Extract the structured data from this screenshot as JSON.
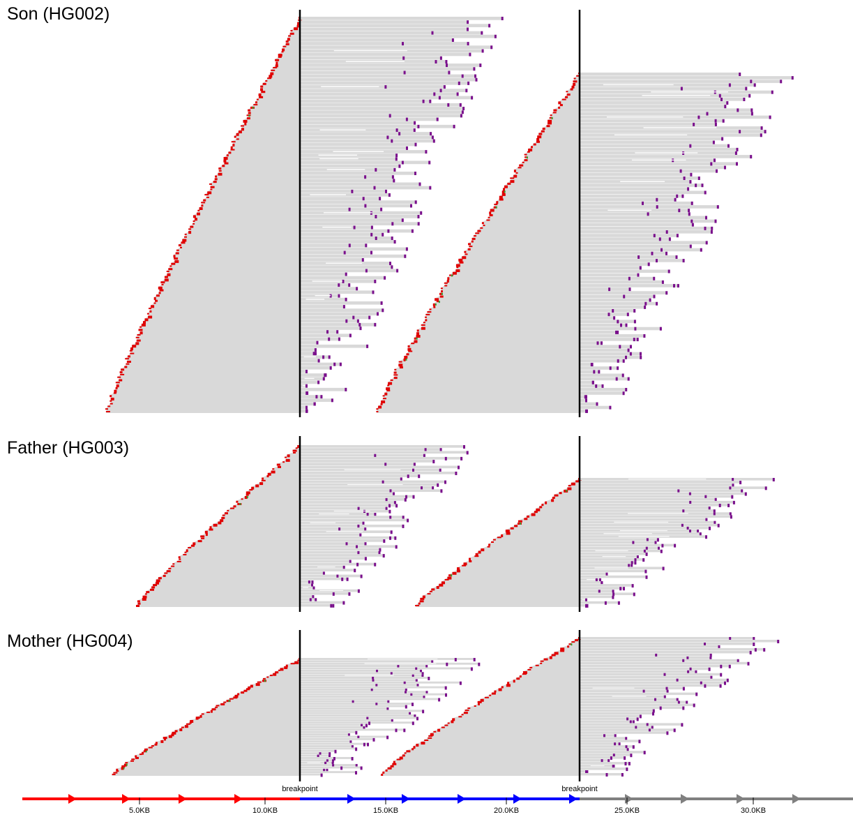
{
  "colors": {
    "read_body": "#d9d9d9",
    "soft_clip_left": "#e00000",
    "soft_clip_right": "#7a0f8c",
    "mismatch": "#3a9e2f",
    "breakpoint_line": "#000000",
    "segment_1": "#ff0000",
    "segment_2": "#0000ff",
    "segment_3": "#808080"
  },
  "panels": [
    {
      "id": "son",
      "title": "Son (HG002)"
    },
    {
      "id": "father",
      "title": "Father (HG003)"
    },
    {
      "id": "mother",
      "title": "Mother (HG004)"
    }
  ],
  "breakpoints": [
    {
      "label": "breakpoint",
      "position_kb": 11.5
    },
    {
      "label": "breakpoint",
      "position_kb": 23.0
    }
  ],
  "axis": {
    "range_kb": [
      0.7,
      34.9
    ],
    "ticks": [
      {
        "value_kb": 5.0,
        "label": "5.0KB"
      },
      {
        "value_kb": 10.0,
        "label": "10.0KB"
      },
      {
        "value_kb": 15.0,
        "label": "15.0KB"
      },
      {
        "value_kb": 20.0,
        "label": "20.0KB"
      },
      {
        "value_kb": 25.0,
        "label": "25.0KB"
      },
      {
        "value_kb": 30.0,
        "label": "30.0KB"
      }
    ],
    "segments": [
      {
        "name": "",
        "start_kb": 0.7,
        "end_kb": 11.5,
        "color": "#ff0000"
      },
      {
        "name": "",
        "start_kb": 11.5,
        "end_kb": 23.0,
        "color": "#0000ff"
      },
      {
        "name": "",
        "start_kb": 23.0,
        "end_kb": 34.9,
        "color": "#808080"
      }
    ]
  }
}
